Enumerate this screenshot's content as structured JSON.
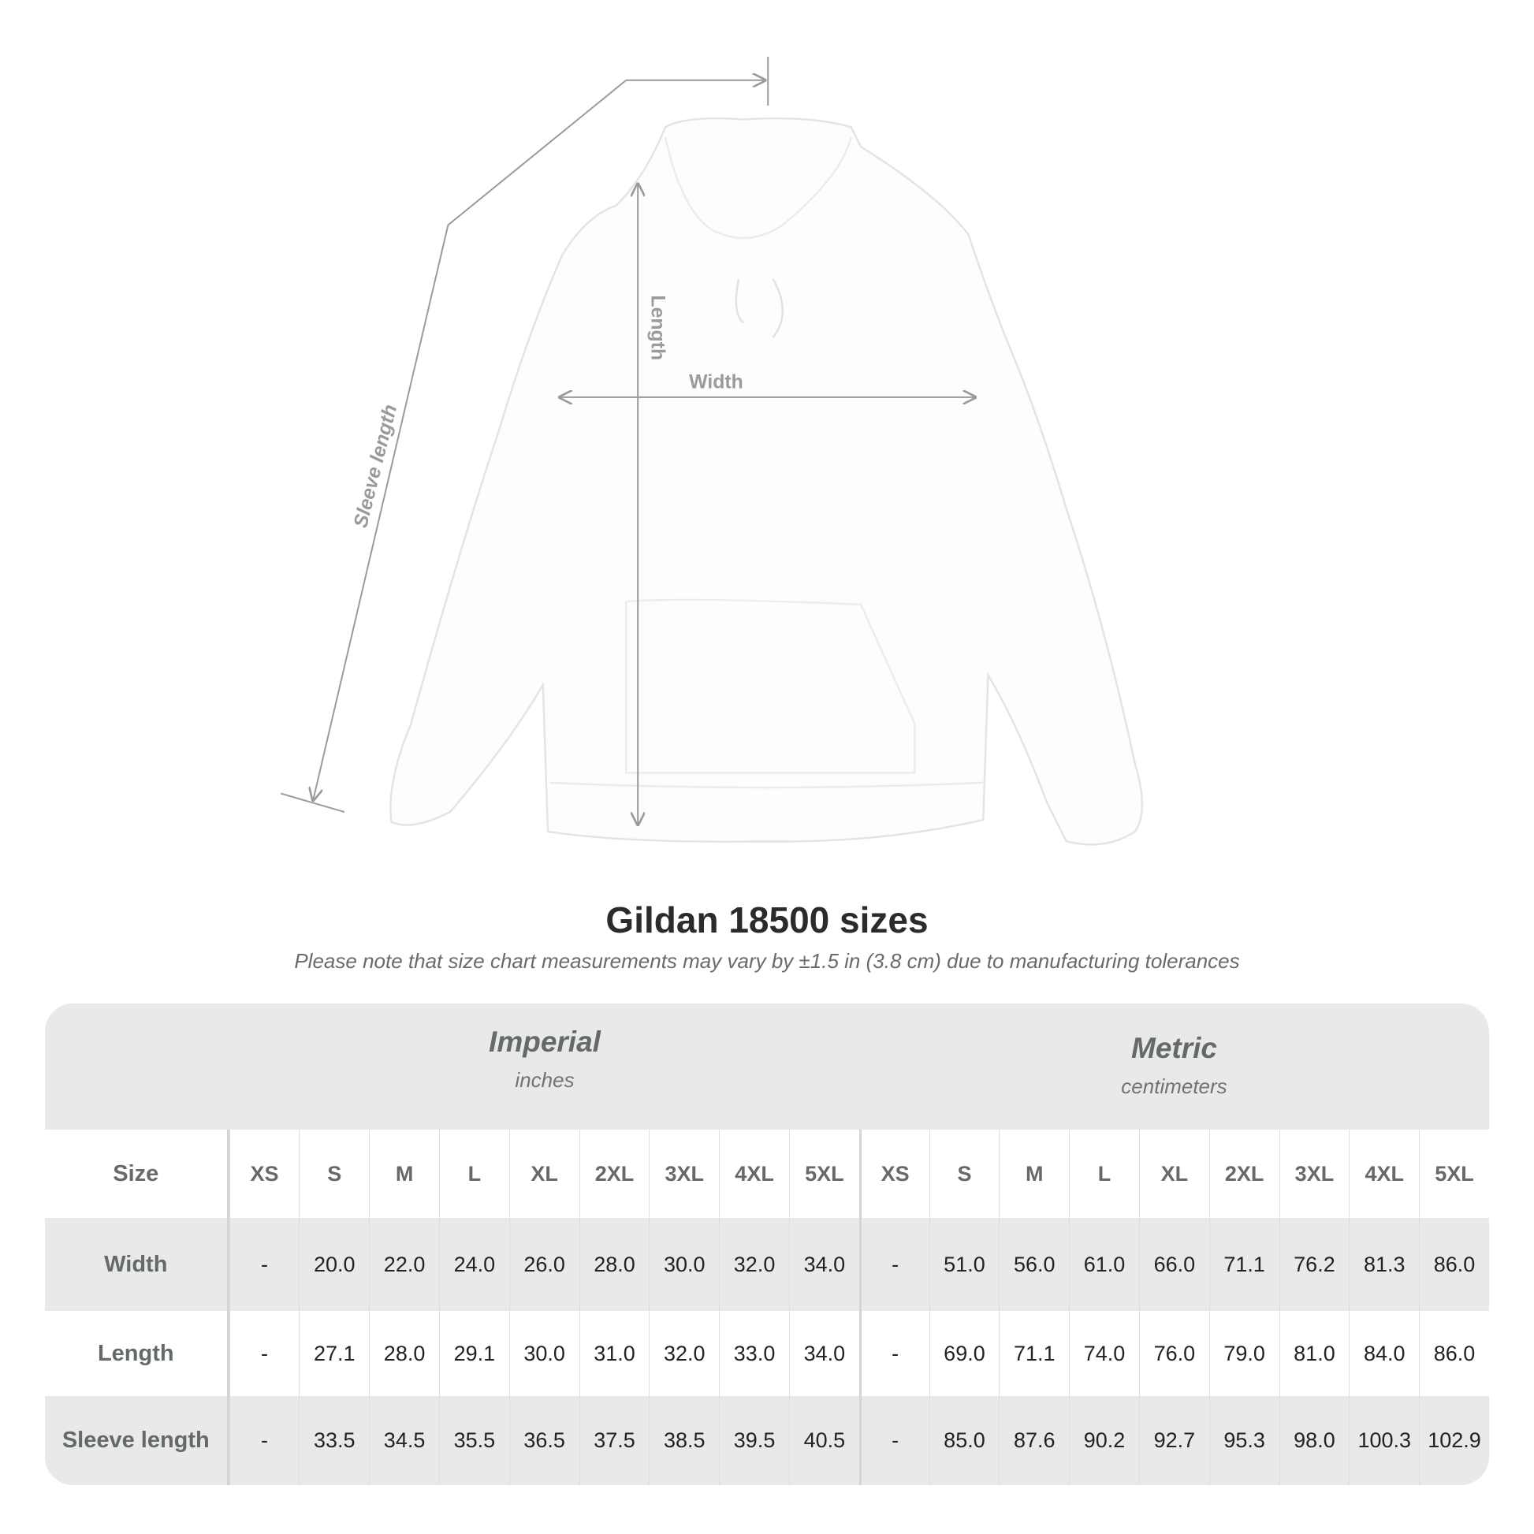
{
  "diagram": {
    "labels": {
      "sleeve": "Sleeve length",
      "length": "Length",
      "width": "Width"
    },
    "line_color": "#9a9a9a"
  },
  "title": "Gildan 18500 sizes",
  "subtitle": "Please note that size chart measurements may vary by ±1.5 in (3.8 cm) due to manufacturing tolerances",
  "table": {
    "imperial": {
      "name": "Imperial",
      "unit": "inches"
    },
    "metric": {
      "name": "Metric",
      "unit": "centimeters"
    },
    "size_label": "Size",
    "sizes": [
      "XS",
      "S",
      "M",
      "L",
      "XL",
      "2XL",
      "3XL",
      "4XL",
      "5XL"
    ],
    "rows": [
      {
        "label": "Width",
        "imperial": [
          "-",
          "20.0",
          "22.0",
          "24.0",
          "26.0",
          "28.0",
          "30.0",
          "32.0",
          "34.0"
        ],
        "metric": [
          "-",
          "51.0",
          "56.0",
          "61.0",
          "66.0",
          "71.1",
          "76.2",
          "81.3",
          "86.0"
        ]
      },
      {
        "label": "Length",
        "imperial": [
          "-",
          "27.1",
          "28.0",
          "29.1",
          "30.0",
          "31.0",
          "32.0",
          "33.0",
          "34.0"
        ],
        "metric": [
          "-",
          "69.0",
          "71.1",
          "74.0",
          "76.0",
          "79.0",
          "81.0",
          "84.0",
          "86.0"
        ]
      },
      {
        "label": "Sleeve length",
        "imperial": [
          "-",
          "33.5",
          "34.5",
          "35.5",
          "36.5",
          "37.5",
          "38.5",
          "39.5",
          "40.5"
        ],
        "metric": [
          "-",
          "85.0",
          "87.6",
          "90.2",
          "92.7",
          "95.3",
          "98.0",
          "100.3",
          "102.9"
        ]
      }
    ]
  }
}
